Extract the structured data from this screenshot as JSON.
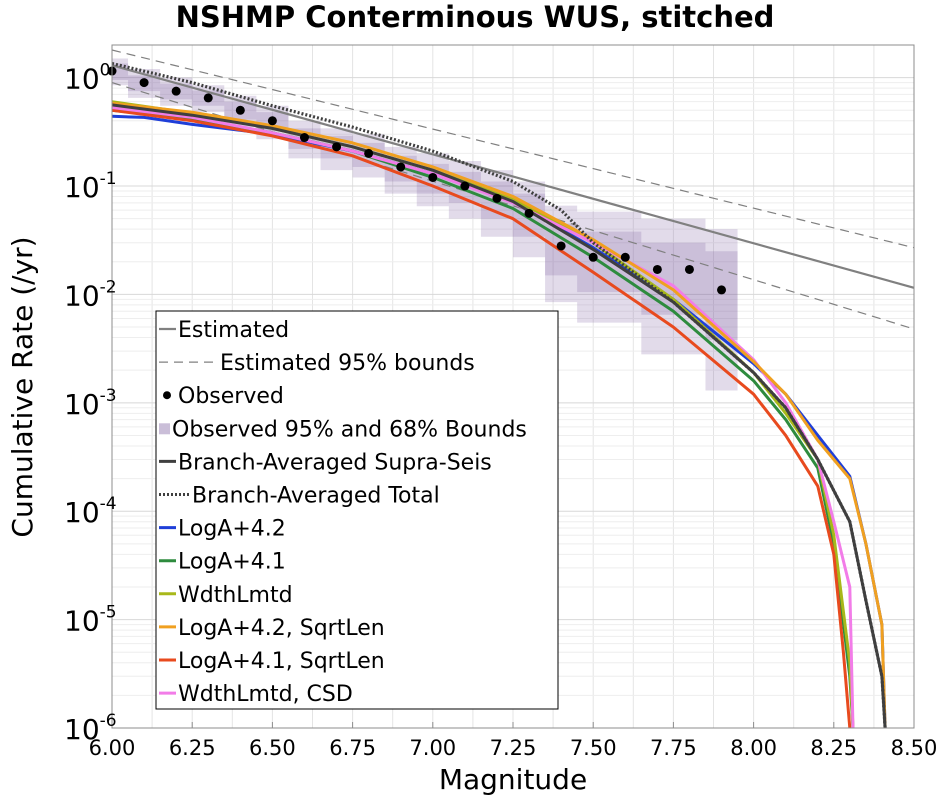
{
  "chart_data": {
    "type": "line",
    "title": "NSHMP Conterminous WUS, stitched",
    "xlabel": "Magnitude",
    "ylabel": "Cumulative Rate (/yr)",
    "xlim": [
      6.0,
      8.5
    ],
    "ylim": [
      1e-06,
      2
    ],
    "yscale": "log",
    "grid": true,
    "legend_position": "lower-left",
    "x_ticks": [
      "6.00",
      "6.25",
      "6.50",
      "6.75",
      "7.00",
      "7.25",
      "7.50",
      "7.75",
      "8.00",
      "8.25",
      "8.50"
    ],
    "y_ticks": [
      {
        "base": "10",
        "exp": "0",
        "value": 1
      },
      {
        "base": "10",
        "exp": "-1",
        "value": 0.1
      },
      {
        "base": "10",
        "exp": "-2",
        "value": 0.01
      },
      {
        "base": "10",
        "exp": "-3",
        "value": 0.001
      },
      {
        "base": "10",
        "exp": "-4",
        "value": 0.0001
      },
      {
        "base": "10",
        "exp": "-5",
        "value": 1e-05
      },
      {
        "base": "10",
        "exp": "-6",
        "value": 1e-06
      }
    ],
    "estimated": {
      "name": "Estimated",
      "color": "#808080",
      "x": [
        6.0,
        8.5
      ],
      "y": [
        1.3,
        0.0115
      ]
    },
    "estimated_bounds": {
      "name": "Estimated 95% bounds",
      "color": "#808080",
      "upper": {
        "x": [
          6.0,
          8.5
        ],
        "y": [
          1.8,
          0.027
        ]
      },
      "lower": {
        "x": [
          6.0,
          8.5
        ],
        "y": [
          0.9,
          0.0048
        ]
      }
    },
    "observed": {
      "name": "Observed",
      "color": "#000000",
      "x": [
        6.0,
        6.1,
        6.2,
        6.3,
        6.4,
        6.5,
        6.6,
        6.7,
        6.8,
        6.9,
        7.0,
        7.1,
        7.2,
        7.3,
        7.4,
        7.5,
        7.6,
        7.7,
        7.8,
        7.9
      ],
      "y": [
        1.15,
        0.9,
        0.75,
        0.65,
        0.5,
        0.4,
        0.28,
        0.23,
        0.2,
        0.15,
        0.12,
        0.1,
        0.077,
        0.056,
        0.028,
        0.022,
        0.022,
        0.017,
        0.017,
        0.011
      ]
    },
    "observed_bounds": {
      "name": "Observed 95% and 68% Bounds",
      "color": "#7a5c9e",
      "x": [
        6.0,
        6.1,
        6.2,
        6.3,
        6.4,
        6.5,
        6.6,
        6.7,
        6.8,
        6.9,
        7.0,
        7.1,
        7.2,
        7.3,
        7.4,
        7.5,
        7.6,
        7.7,
        7.8,
        7.9
      ],
      "upper95": [
        1.5,
        1.2,
        1.0,
        0.85,
        0.68,
        0.55,
        0.4,
        0.34,
        0.3,
        0.23,
        0.2,
        0.17,
        0.14,
        0.11,
        0.066,
        0.058,
        0.058,
        0.05,
        0.05,
        0.04
      ],
      "lower95": [
        0.85,
        0.65,
        0.55,
        0.48,
        0.35,
        0.27,
        0.18,
        0.14,
        0.12,
        0.085,
        0.065,
        0.05,
        0.034,
        0.022,
        0.0085,
        0.0055,
        0.0055,
        0.0028,
        0.0028,
        0.0013
      ],
      "upper68": [
        1.35,
        1.05,
        0.88,
        0.76,
        0.6,
        0.48,
        0.34,
        0.29,
        0.25,
        0.19,
        0.16,
        0.135,
        0.11,
        0.085,
        0.045,
        0.038,
        0.038,
        0.03,
        0.03,
        0.025
      ],
      "lower68": [
        0.95,
        0.75,
        0.63,
        0.55,
        0.41,
        0.32,
        0.22,
        0.18,
        0.15,
        0.11,
        0.085,
        0.07,
        0.05,
        0.034,
        0.015,
        0.0105,
        0.0105,
        0.0065,
        0.0065,
        0.0038
      ]
    },
    "series": [
      {
        "name": "Branch-Averaged Supra-Seis",
        "color": "#3f3f3f",
        "style": "solid",
        "x": [
          6.0,
          6.25,
          6.5,
          6.75,
          7.0,
          7.25,
          7.5,
          7.75,
          8.0,
          8.1,
          8.2,
          8.3,
          8.35,
          8.4,
          8.41
        ],
        "y": [
          0.56,
          0.45,
          0.34,
          0.23,
          0.14,
          0.072,
          0.026,
          0.0085,
          0.0019,
          0.0009,
          0.0003,
          8e-05,
          1.5e-05,
          3e-06,
          1e-06
        ]
      },
      {
        "name": "Branch-Averaged Total",
        "color": "#3f3f3f",
        "style": "dotted",
        "x": [
          6.0,
          6.25,
          6.5,
          6.75,
          7.0,
          7.25,
          7.4,
          7.5,
          7.75,
          8.0,
          8.1,
          8.2,
          8.3,
          8.35,
          8.4,
          8.41
        ],
        "y": [
          1.35,
          0.9,
          0.55,
          0.35,
          0.21,
          0.11,
          0.06,
          0.03,
          0.0085,
          0.0019,
          0.0009,
          0.0003,
          8e-05,
          1.5e-05,
          3e-06,
          1e-06
        ]
      },
      {
        "name": "LogA+4.2",
        "color": "#1f3fd8",
        "style": "solid",
        "x": [
          6.0,
          6.1,
          6.25,
          6.5,
          6.75,
          7.0,
          7.25,
          7.5,
          7.75,
          8.0,
          8.1,
          8.2,
          8.3,
          8.35,
          8.4,
          8.41
        ],
        "y": [
          0.44,
          0.43,
          0.37,
          0.3,
          0.21,
          0.13,
          0.071,
          0.027,
          0.009,
          0.0023,
          0.0012,
          0.0005,
          0.00021,
          5e-05,
          9e-06,
          1e-06
        ]
      },
      {
        "name": "LogA+4.1",
        "color": "#2e8b3e",
        "style": "solid",
        "x": [
          6.0,
          6.25,
          6.5,
          6.75,
          7.0,
          7.25,
          7.5,
          7.75,
          8.0,
          8.1,
          8.2,
          8.25,
          8.3,
          8.31
        ],
        "y": [
          0.5,
          0.42,
          0.31,
          0.21,
          0.12,
          0.062,
          0.022,
          0.007,
          0.0016,
          0.0007,
          0.00025,
          5e-05,
          3e-06,
          1e-06
        ]
      },
      {
        "name": "WdthLmtd",
        "color": "#a8b81a",
        "style": "solid",
        "x": [
          6.0,
          6.25,
          6.5,
          6.75,
          7.0,
          7.25,
          7.5,
          7.75,
          8.0,
          8.1,
          8.2,
          8.25,
          8.3,
          8.31
        ],
        "y": [
          0.6,
          0.47,
          0.34,
          0.23,
          0.14,
          0.075,
          0.03,
          0.009,
          0.0019,
          0.0008,
          0.0003,
          6e-05,
          4e-06,
          1e-06
        ]
      },
      {
        "name": "LogA+4.2, SqrtLen",
        "color": "#f0a020",
        "style": "solid",
        "x": [
          6.0,
          6.25,
          6.5,
          6.75,
          7.0,
          7.25,
          7.5,
          7.75,
          8.0,
          8.1,
          8.2,
          8.3,
          8.35,
          8.4,
          8.41
        ],
        "y": [
          0.58,
          0.48,
          0.36,
          0.25,
          0.15,
          0.08,
          0.032,
          0.011,
          0.0024,
          0.0012,
          0.00045,
          0.0002,
          5e-05,
          9e-06,
          1e-06
        ]
      },
      {
        "name": "LogA+4.1, SqrtLen",
        "color": "#e84a1e",
        "style": "solid",
        "x": [
          6.0,
          6.25,
          6.5,
          6.75,
          7.0,
          7.25,
          7.5,
          7.75,
          8.0,
          8.1,
          8.2,
          8.25,
          8.28,
          8.3
        ],
        "y": [
          0.5,
          0.4,
          0.29,
          0.19,
          0.1,
          0.05,
          0.016,
          0.005,
          0.0012,
          0.0005,
          0.00017,
          4e-05,
          5e-06,
          1e-06
        ]
      },
      {
        "name": "WdthLmtd, CSD",
        "color": "#f27ce8",
        "style": "solid",
        "x": [
          6.0,
          6.25,
          6.5,
          6.75,
          7.0,
          7.25,
          7.5,
          7.75,
          8.0,
          8.1,
          8.2,
          8.25,
          8.3,
          8.31
        ],
        "y": [
          0.53,
          0.43,
          0.31,
          0.21,
          0.13,
          0.07,
          0.03,
          0.012,
          0.0025,
          0.001,
          0.0003,
          8e-05,
          2e-05,
          1e-06
        ]
      }
    ]
  }
}
